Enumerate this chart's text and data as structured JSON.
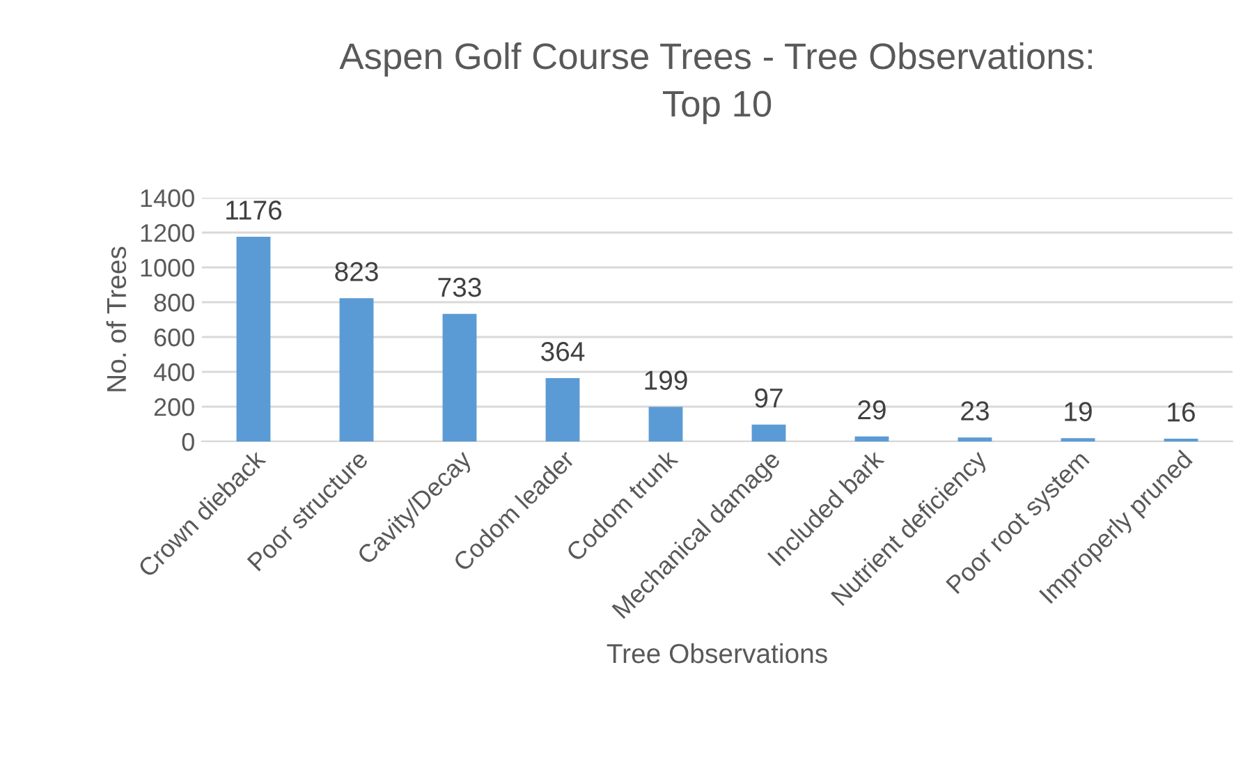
{
  "chart_data": {
    "type": "bar",
    "title": "Aspen Golf Course Trees - Tree Observations:\nTop 10",
    "xlabel": "Tree Observations",
    "ylabel": "No. of Trees",
    "categories": [
      "Crown dieback",
      "Poor structure",
      "Cavity/Decay",
      "Codom leader",
      "Codom trunk",
      "Mechanical damage",
      "Included bark",
      "Nutrient deficiency",
      "Poor root system",
      "Improperly pruned"
    ],
    "values": [
      1176,
      823,
      733,
      364,
      199,
      97,
      29,
      23,
      19,
      16
    ],
    "color": "#5b9bd5",
    "ylim": [
      0,
      1400
    ],
    "yticks": [
      0,
      200,
      400,
      600,
      800,
      1000,
      1200,
      1400
    ],
    "grid": "y",
    "data_labels": true,
    "legend": false
  }
}
